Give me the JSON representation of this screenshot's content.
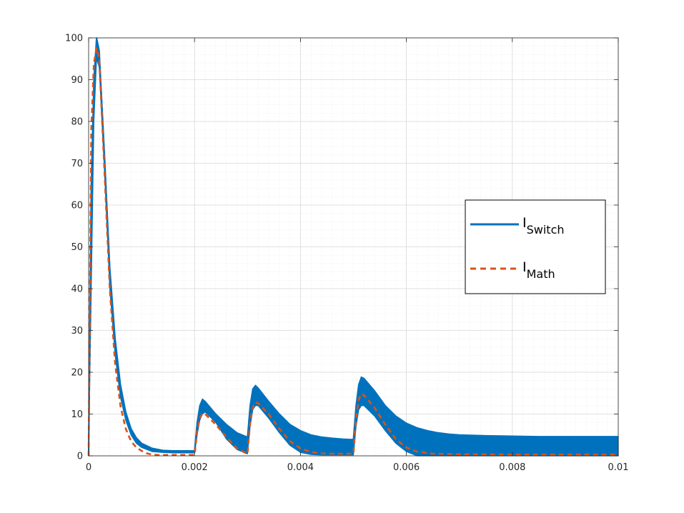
{
  "chart_data": {
    "type": "line",
    "title": "",
    "xlabel": "",
    "ylabel": "",
    "xlim": [
      0,
      0.01
    ],
    "ylim": [
      0,
      100
    ],
    "xticks": [
      0,
      0.002,
      0.004,
      0.006,
      0.008,
      0.01
    ],
    "xtick_labels": [
      "0",
      "0.002",
      "0.004",
      "0.006",
      "0.008",
      "0.01"
    ],
    "yticks": [
      0,
      10,
      20,
      30,
      40,
      50,
      60,
      70,
      80,
      90,
      100
    ],
    "ytick_labels": [
      "0",
      "10",
      "20",
      "30",
      "40",
      "50",
      "60",
      "70",
      "80",
      "90",
      "100"
    ],
    "grid": true,
    "minor_grid": true,
    "legend_position": "right",
    "series": [
      {
        "name_main": "I",
        "name_sub": "Switch",
        "color": "#0072BD",
        "style": "solid",
        "rendering": "band",
        "x": [
          0,
          5e-05,
          0.0001,
          0.00015,
          0.0002,
          0.0003,
          0.0004,
          0.0005,
          0.0006,
          0.0007,
          0.0008,
          0.0009,
          0.001,
          0.0012,
          0.0014,
          0.0016,
          0.0018,
          0.00199,
          0.002,
          0.00205,
          0.0021,
          0.00215,
          0.0022,
          0.0024,
          0.0026,
          0.0028,
          0.00299,
          0.003,
          0.00305,
          0.0031,
          0.00315,
          0.0032,
          0.0034,
          0.0036,
          0.0038,
          0.004,
          0.0042,
          0.0044,
          0.0046,
          0.0048,
          0.00499,
          0.005,
          0.00505,
          0.0051,
          0.00515,
          0.0052,
          0.0054,
          0.0056,
          0.0058,
          0.006,
          0.0062,
          0.0064,
          0.0066,
          0.0068,
          0.007,
          0.0075,
          0.008,
          0.0085,
          0.009,
          0.0095,
          0.01
        ],
        "upper": [
          0,
          65,
          90,
          100,
          97,
          72,
          45,
          28,
          17,
          10.5,
          6.5,
          4.3,
          3,
          1.8,
          1.3,
          1.2,
          1.2,
          1.2,
          1.2,
          8,
          12,
          13.5,
          13,
          10,
          7.5,
          5.5,
          4.5,
          4.5,
          12,
          16,
          16.8,
          16.2,
          13,
          10,
          7.5,
          6,
          5,
          4.5,
          4.2,
          4,
          3.9,
          4,
          12,
          17,
          18.8,
          18.5,
          15.5,
          12,
          9.5,
          7.8,
          6.7,
          6,
          5.5,
          5.2,
          5,
          4.8,
          4.7,
          4.6,
          4.6,
          4.6,
          4.6
        ],
        "lower": [
          0,
          40,
          80,
          95,
          93,
          68,
          40,
          24,
          14,
          8.5,
          5,
          3,
          2,
          1,
          0.8,
          0.7,
          0.7,
          0.7,
          0.7,
          5,
          8.5,
          10,
          10.5,
          8,
          4,
          1.5,
          0.5,
          0.5,
          7,
          11,
          12,
          12,
          9,
          5.5,
          2.5,
          0.8,
          0.3,
          0.2,
          0.2,
          0.2,
          0.2,
          0.2,
          7,
          11,
          12,
          12,
          9.5,
          6,
          3,
          1,
          0,
          0,
          0,
          0,
          0,
          0,
          0,
          0,
          0,
          0,
          0
        ]
      },
      {
        "name_main": "I",
        "name_sub": "Math",
        "color": "#D95319",
        "style": "dashed",
        "rendering": "line",
        "x": [
          0,
          5e-05,
          0.0001,
          0.00015,
          0.0002,
          0.0003,
          0.0004,
          0.0005,
          0.0006,
          0.0007,
          0.0008,
          0.0009,
          0.001,
          0.0011,
          0.0012,
          0.0013,
          0.0014,
          0.0016,
          0.0018,
          0.00199,
          0.002,
          0.00205,
          0.0021,
          0.00215,
          0.0022,
          0.0024,
          0.0026,
          0.0028,
          0.00299,
          0.003,
          0.00305,
          0.0031,
          0.00315,
          0.0032,
          0.0034,
          0.0036,
          0.0038,
          0.004,
          0.0042,
          0.0044,
          0.0046,
          0.0048,
          0.00499,
          0.005,
          0.00505,
          0.0051,
          0.00515,
          0.0052,
          0.0054,
          0.0056,
          0.0058,
          0.006,
          0.0062,
          0.0065,
          0.007,
          0.008,
          0.009,
          0.01
        ],
        "values": [
          0,
          78,
          94,
          97.5,
          95,
          68,
          40,
          22,
          12,
          6.5,
          3.5,
          2,
          1.2,
          0.6,
          0.3,
          0.2,
          0.2,
          0.2,
          0.2,
          0.2,
          0.2,
          6,
          9,
          10.2,
          10,
          7.5,
          4.5,
          1.8,
          0.5,
          0.5,
          8,
          11.5,
          12.8,
          12.6,
          10,
          6.5,
          3.5,
          1.8,
          0.9,
          0.6,
          0.5,
          0.5,
          0.5,
          0.5,
          9,
          13.5,
          14.8,
          14.5,
          11.5,
          7.5,
          4,
          2,
          1,
          0.5,
          0.4,
          0.3,
          0.3,
          0.3
        ]
      }
    ]
  }
}
